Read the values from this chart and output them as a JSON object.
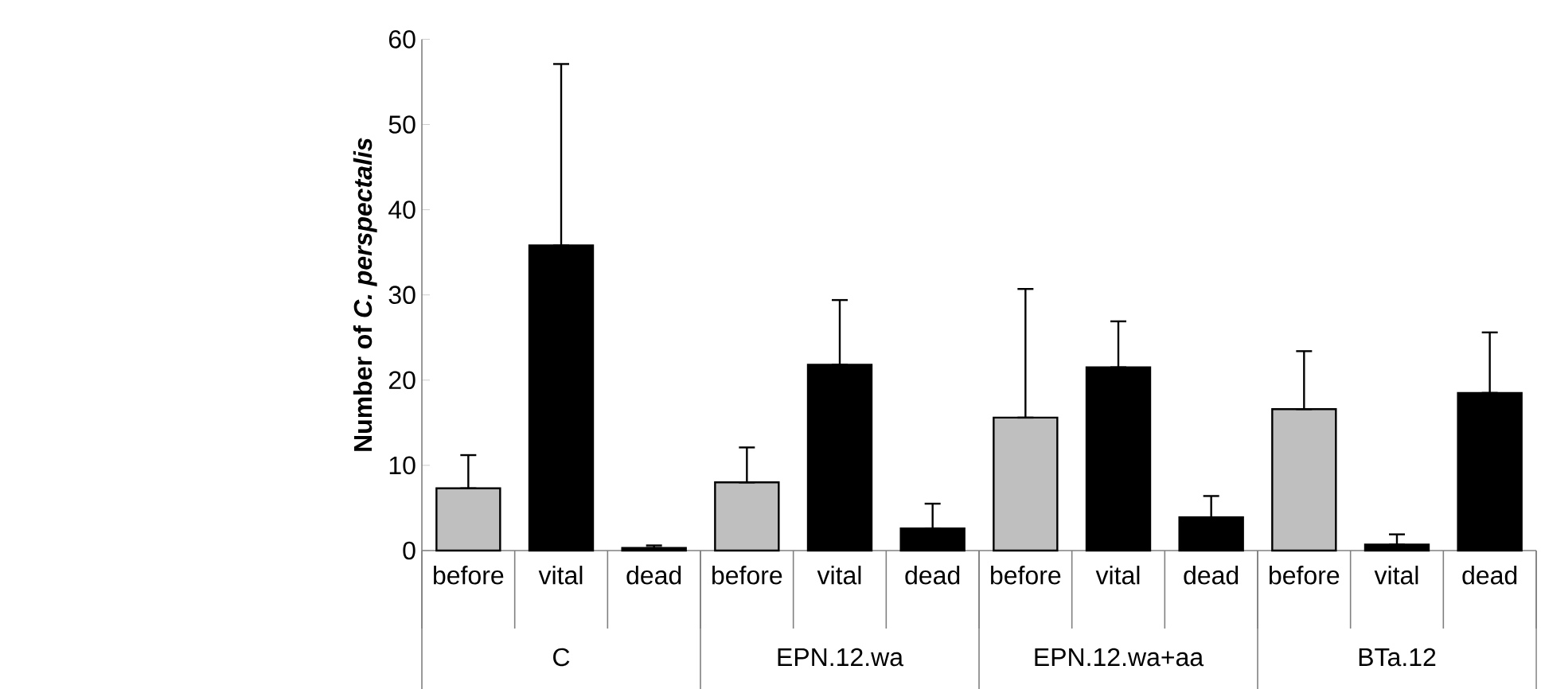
{
  "chart_data": {
    "type": "bar",
    "ylabel": "Number of *C. perspectalis*",
    "categories": [
      "before",
      "vital",
      "dead",
      "before",
      "vital",
      "dead",
      "before",
      "vital",
      "dead",
      "before",
      "vital",
      "dead"
    ],
    "values": [
      7.3,
      35.8,
      0.3,
      8.0,
      21.8,
      2.6,
      15.6,
      21.5,
      3.9,
      16.6,
      0.7,
      18.5
    ],
    "errors": [
      [
        7.3,
        11.2
      ],
      [
        35.8,
        57.1
      ],
      [
        0.3,
        0.6
      ],
      [
        8.0,
        12.1
      ],
      [
        21.8,
        29.4
      ],
      [
        2.6,
        5.5
      ],
      [
        15.6,
        30.7
      ],
      [
        21.5,
        26.9
      ],
      [
        3.9,
        6.4
      ],
      [
        16.6,
        23.4
      ],
      [
        0.7,
        1.9
      ],
      [
        18.5,
        25.6
      ]
    ],
    "colors": [
      "#bfbfbf",
      "#000000",
      "#000000",
      "#bfbfbf",
      "#000000",
      "#000000",
      "#bfbfbf",
      "#000000",
      "#000000",
      "#bfbfbf",
      "#000000",
      "#000000"
    ],
    "annotations": [
      "C",
      "EPN.12.wa",
      "EPN.12.wa+aa",
      "BTa.12"
    ],
    "ylim": [
      0,
      60
    ],
    "yticks": [
      0,
      10,
      20,
      30,
      40,
      50,
      60
    ]
  }
}
